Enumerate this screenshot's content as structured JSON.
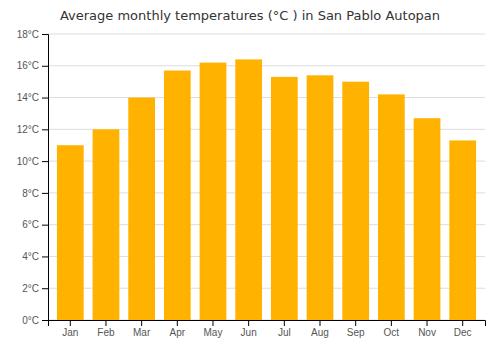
{
  "chart_data": {
    "type": "bar",
    "title": "Average monthly temperatures (°C ) in San Pablo Autopan",
    "categories": [
      "Jan",
      "Feb",
      "Mar",
      "Apr",
      "May",
      "Jun",
      "Jul",
      "Aug",
      "Sep",
      "Oct",
      "Nov",
      "Dec"
    ],
    "values": [
      11.0,
      12.0,
      14.0,
      15.7,
      16.2,
      16.4,
      15.3,
      15.4,
      15.0,
      14.2,
      12.7,
      11.3
    ],
    "color": "#FFB300",
    "ylim": [
      0,
      18
    ],
    "yticks": [
      {
        "value": 0,
        "label": "0°C"
      },
      {
        "value": 2,
        "label": "2°C"
      },
      {
        "value": 4,
        "label": "4°C"
      },
      {
        "value": 6,
        "label": "6°C"
      },
      {
        "value": 8,
        "label": "8°C"
      },
      {
        "value": 10,
        "label": "10°C"
      },
      {
        "value": 12,
        "label": "12°C"
      },
      {
        "value": 14,
        "label": "14°C"
      },
      {
        "value": 16,
        "label": "16°C"
      },
      {
        "value": 18,
        "label": "18°C"
      }
    ],
    "grid": true
  }
}
